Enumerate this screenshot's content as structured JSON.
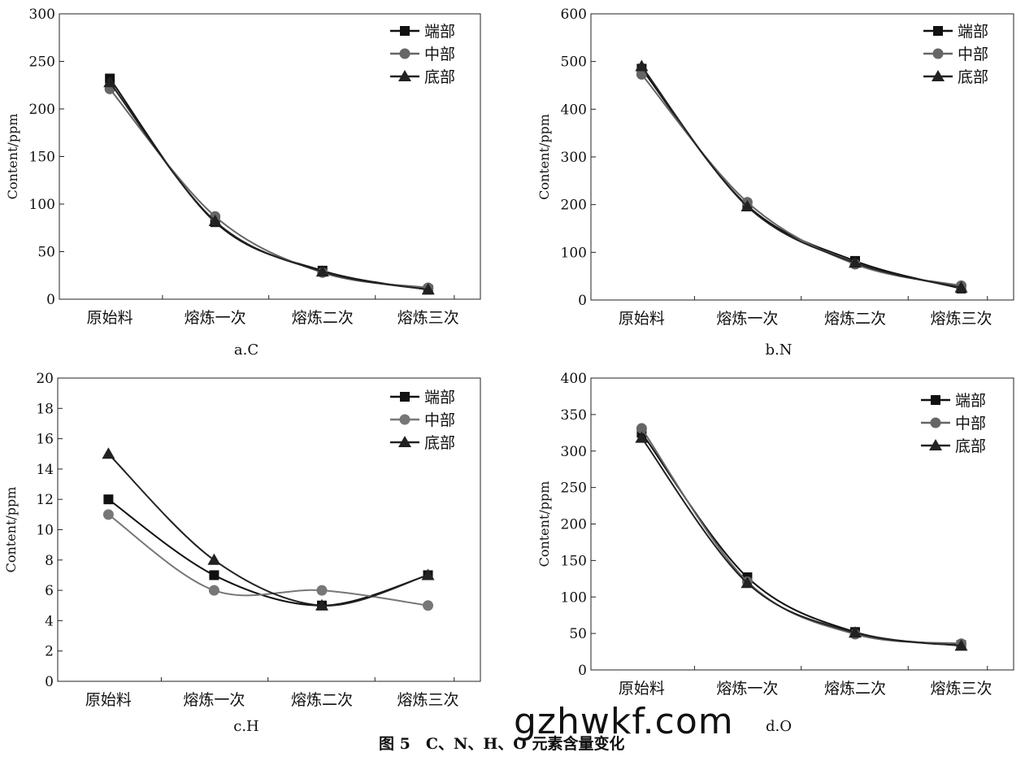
{
  "chart_data": [
    {
      "type": "line",
      "panel_label": "a.C",
      "ylabel": "Content/ppm",
      "ylim": [
        0,
        300
      ],
      "yticks": [
        0,
        50,
        100,
        150,
        200,
        250,
        300
      ],
      "categories": [
        "原始料",
        "熔炼一次",
        "熔炼二次",
        "熔炼三次"
      ],
      "legend_position": "top-right",
      "grid": false,
      "series": [
        {
          "name": "端部",
          "marker": "square",
          "color": "#111111",
          "values": [
            232,
            81,
            30,
            10
          ]
        },
        {
          "name": "中部",
          "marker": "circle",
          "color": "#666666",
          "values": [
            221,
            87,
            28,
            12
          ]
        },
        {
          "name": "底部",
          "marker": "triangle",
          "color": "#222222",
          "values": [
            228,
            82,
            29,
            10
          ]
        }
      ]
    },
    {
      "type": "line",
      "panel_label": "b.N",
      "ylabel": "Content/ppm",
      "ylim": [
        0,
        600
      ],
      "yticks": [
        0,
        100,
        200,
        300,
        400,
        500,
        600
      ],
      "categories": [
        "原始料",
        "熔炼一次",
        "熔炼二次",
        "熔炼三次"
      ],
      "legend_position": "top-right",
      "grid": false,
      "series": [
        {
          "name": "端部",
          "marker": "square",
          "color": "#111111",
          "values": [
            485,
            198,
            82,
            24
          ]
        },
        {
          "name": "中部",
          "marker": "circle",
          "color": "#666666",
          "values": [
            473,
            205,
            75,
            30
          ]
        },
        {
          "name": "底部",
          "marker": "triangle",
          "color": "#222222",
          "values": [
            490,
            196,
            78,
            26
          ]
        }
      ]
    },
    {
      "type": "line",
      "panel_label": "c.H",
      "ylabel": "Content/ppm",
      "ylim": [
        0,
        20
      ],
      "yticks": [
        0,
        2,
        4,
        6,
        8,
        10,
        12,
        14,
        16,
        18,
        20
      ],
      "categories": [
        "原始料",
        "熔炼一次",
        "熔炼二次",
        "熔炼三次"
      ],
      "legend_position": "top-right",
      "grid": false,
      "series": [
        {
          "name": "端部",
          "marker": "square",
          "color": "#111111",
          "values": [
            12,
            7,
            5,
            7
          ]
        },
        {
          "name": "中部",
          "marker": "circle",
          "color": "#777777",
          "values": [
            11,
            6,
            6,
            5
          ]
        },
        {
          "name": "底部",
          "marker": "triangle",
          "color": "#222222",
          "values": [
            15,
            8,
            5,
            7
          ]
        }
      ]
    },
    {
      "type": "line",
      "panel_label": "d.O",
      "ylabel": "Content/ppm",
      "ylim": [
        0,
        400
      ],
      "yticks": [
        0,
        50,
        100,
        150,
        200,
        250,
        300,
        350,
        400
      ],
      "categories": [
        "原始料",
        "熔炼一次",
        "熔炼二次",
        "熔炼三次"
      ],
      "legend_position": "top-right",
      "grid": false,
      "series": [
        {
          "name": "端部",
          "marker": "square",
          "color": "#111111",
          "values": [
            325,
            127,
            52,
            34
          ]
        },
        {
          "name": "中部",
          "marker": "circle",
          "color": "#666666",
          "values": [
            331,
            121,
            49,
            36
          ]
        },
        {
          "name": "底部",
          "marker": "triangle",
          "color": "#222222",
          "values": [
            318,
            119,
            51,
            33
          ]
        }
      ]
    }
  ],
  "figure_caption": "图 5　C、N、H、O 元素含量变化",
  "watermark": "gzhwkf.com"
}
